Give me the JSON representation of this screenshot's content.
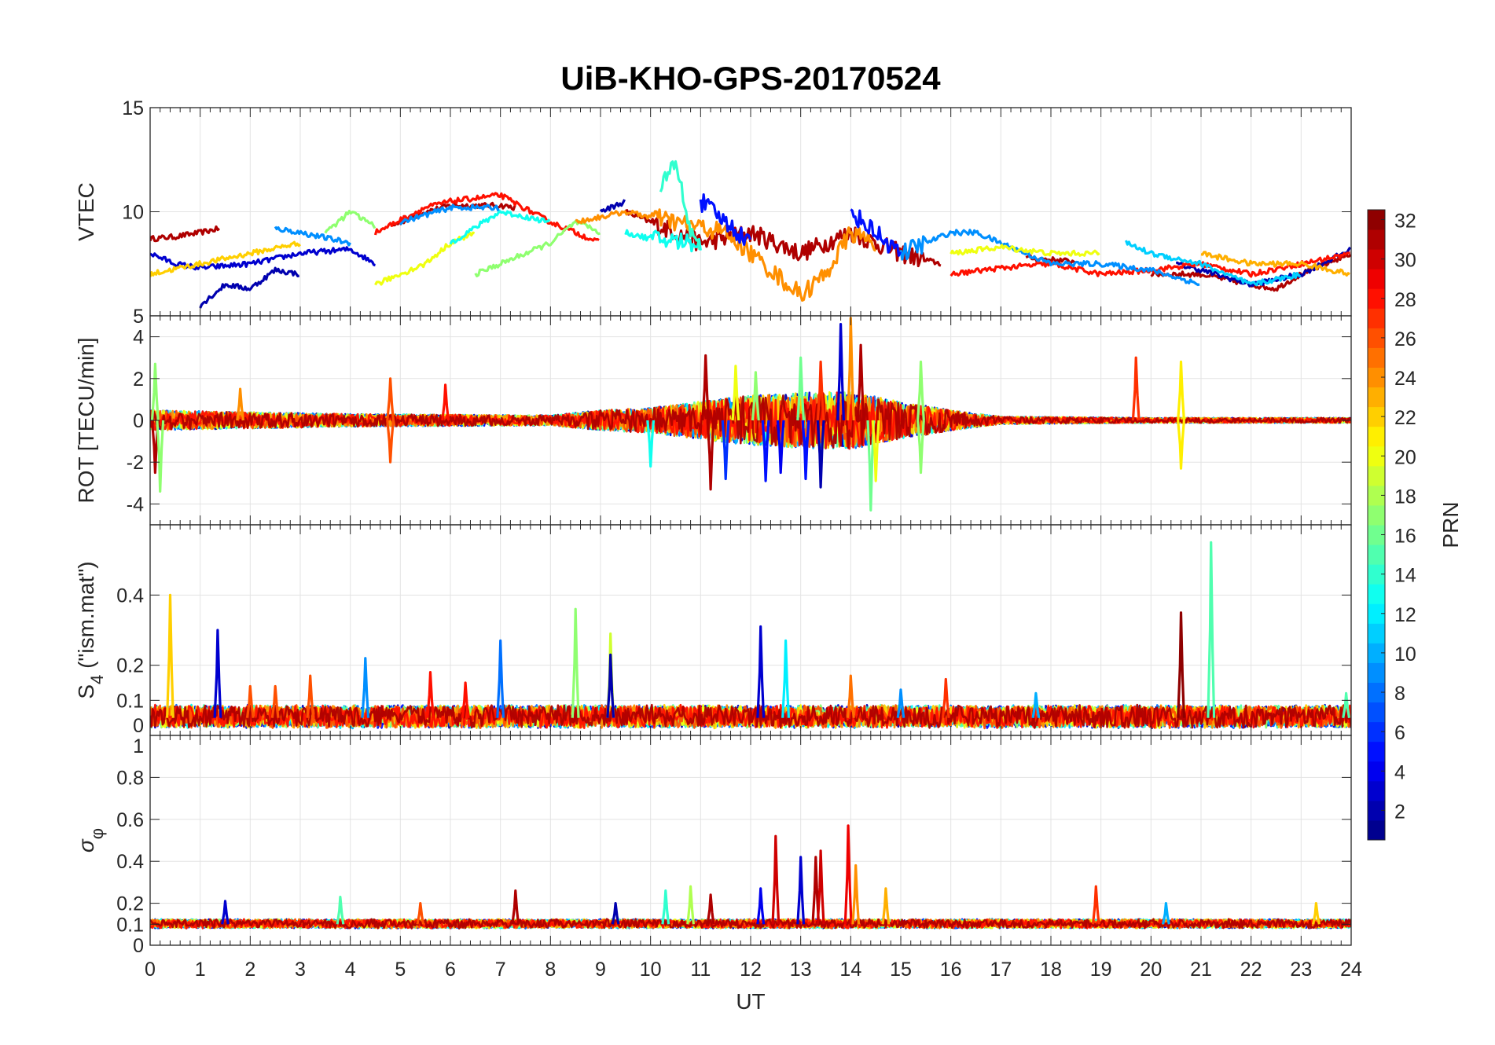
{
  "chart_data": {
    "type": "line",
    "title": "UiB-KHO-GPS-20170524",
    "xlabel": "UT",
    "xlim": [
      0,
      24
    ],
    "xticks": [
      0,
      1,
      2,
      3,
      4,
      5,
      6,
      7,
      8,
      9,
      10,
      11,
      12,
      13,
      14,
      15,
      16,
      17,
      18,
      19,
      20,
      21,
      22,
      23,
      24
    ],
    "grid": true,
    "colorbar": {
      "label": "PRN",
      "range": [
        1,
        32
      ],
      "ticks": [
        2,
        4,
        6,
        8,
        10,
        12,
        14,
        16,
        18,
        20,
        22,
        24,
        26,
        28,
        30,
        32
      ],
      "colormap": "jet",
      "levels": 32,
      "placement": "right"
    },
    "panels": [
      {
        "id": "vtec",
        "ylabel": "VTEC",
        "ylim": [
          5,
          15
        ],
        "yticks": [
          5,
          10,
          15
        ],
        "series": [
          {
            "prn": 31,
            "x": [
              0,
              0.5,
              1,
              1.4
            ],
            "y": [
              8.7,
              8.8,
              9.0,
              9.2
            ]
          },
          {
            "prn": 31,
            "x": [
              4.8,
              5.5,
              6,
              7,
              7.3
            ],
            "y": [
              9.3,
              10,
              10.3,
              10.3,
              10.2
            ]
          },
          {
            "prn": 31,
            "x": [
              9.5,
              10,
              11,
              12,
              13,
              14,
              15,
              15.8
            ],
            "y": [
              10,
              9.5,
              8.5,
              9,
              8,
              9,
              8,
              7.5
            ]
          },
          {
            "prn": 31,
            "x": [
              17.5,
              18.5
            ],
            "y": [
              7.8,
              7.6
            ]
          },
          {
            "prn": 31,
            "x": [
              20,
              21,
              22,
              22.5,
              23,
              24
            ],
            "y": [
              7,
              7,
              6.5,
              6.3,
              7,
              8
            ]
          },
          {
            "prn": 3,
            "x": [
              0,
              0.5,
              1,
              2,
              3,
              4,
              4.5
            ],
            "y": [
              8,
              7.5,
              7.3,
              7.5,
              8,
              8.2,
              7.5
            ]
          },
          {
            "prn": 2,
            "x": [
              1,
              1.5,
              2,
              2.5,
              3
            ],
            "y": [
              5.5,
              6.5,
              6.3,
              7.2,
              7
            ]
          },
          {
            "prn": 2,
            "x": [
              9,
              9.5
            ],
            "y": [
              10,
              10.5
            ]
          },
          {
            "prn": 2,
            "x": [
              20.5,
              21,
              22,
              23,
              24
            ],
            "y": [
              7.5,
              7.2,
              6.5,
              7,
              8.2
            ]
          },
          {
            "prn": 22,
            "x": [
              0,
              1,
              2,
              3
            ],
            "y": [
              7,
              7.5,
              8,
              8.5
            ]
          },
          {
            "prn": 28,
            "x": [
              4.5,
              5.5,
              6,
              7,
              8,
              9
            ],
            "y": [
              9,
              10.2,
              10.5,
              10.8,
              9.5,
              8.5
            ]
          },
          {
            "prn": 28,
            "x": [
              16,
              17,
              18,
              19,
              20,
              21,
              22,
              24
            ],
            "y": [
              7,
              7.3,
              7.5,
              7,
              7.2,
              7.5,
              7,
              8
            ]
          },
          {
            "prn": 9,
            "x": [
              2.5,
              3,
              4
            ],
            "y": [
              9.2,
              9,
              8.5
            ]
          },
          {
            "prn": 9,
            "x": [
              5,
              6,
              7
            ],
            "y": [
              9.5,
              10.2,
              10.2
            ]
          },
          {
            "prn": 9,
            "x": [
              15,
              16,
              16.5,
              17,
              18,
              19,
              20,
              21
            ],
            "y": [
              8,
              9,
              9,
              8.5,
              7.5,
              7.5,
              7.2,
              6.5
            ]
          },
          {
            "prn": 17,
            "x": [
              3.5,
              4,
              4.5
            ],
            "y": [
              9,
              10,
              9.3
            ]
          },
          {
            "prn": 17,
            "x": [
              6.5,
              7,
              8,
              8.5,
              9
            ],
            "y": [
              7,
              7.5,
              8.5,
              9.5,
              9
            ]
          },
          {
            "prn": 20,
            "x": [
              4.5,
              5,
              5.5,
              6,
              6.5
            ],
            "y": [
              6.5,
              7,
              7.5,
              8.5,
              9
            ]
          },
          {
            "prn": 20,
            "x": [
              16,
              17,
              18,
              19
            ],
            "y": [
              8,
              8.3,
              8,
              8
            ]
          },
          {
            "prn": 13,
            "x": [
              6,
              7,
              8
            ],
            "y": [
              8.5,
              10,
              9.5
            ]
          },
          {
            "prn": 13,
            "x": [
              9.5,
              10,
              11
            ],
            "y": [
              9,
              8.7,
              8.5
            ]
          },
          {
            "prn": 24,
            "x": [
              8.5,
              9.5,
              10.5,
              11.5,
              12,
              12.5,
              13,
              13.5,
              14,
              14.5
            ],
            "y": [
              9.5,
              10,
              9.5,
              9,
              8,
              7,
              6,
              7,
              9,
              8.5
            ]
          },
          {
            "prn": 5,
            "x": [
              11,
              11.5,
              12
            ],
            "y": [
              10.5,
              9.5,
              8.5
            ]
          },
          {
            "prn": 5,
            "x": [
              14,
              14.5,
              15
            ],
            "y": [
              10,
              9,
              8
            ]
          },
          {
            "prn": 14,
            "x": [
              10.2,
              10.5,
              10.8,
              11
            ],
            "y": [
              11,
              12.5,
              9,
              8.5
            ]
          },
          {
            "prn": 23,
            "x": [
              21,
              22,
              23,
              24
            ],
            "y": [
              8,
              7.5,
              7.5,
              7
            ]
          },
          {
            "prn": 11,
            "x": [
              19.5,
              20,
              21,
              22,
              23
            ],
            "y": [
              8.5,
              8,
              7.5,
              6.5,
              7
            ]
          }
        ]
      },
      {
        "id": "rot",
        "ylabel": "ROT [TECU/min]",
        "ylim": [
          -5,
          5
        ],
        "yticks": [
          -4,
          -2,
          0,
          2,
          4
        ],
        "baseline": 0,
        "activity": {
          "x": [
            0,
            4,
            8,
            9,
            10,
            11,
            12,
            13,
            14,
            15,
            16,
            17,
            20,
            24
          ],
          "amplitude": [
            0.8,
            0.5,
            0.4,
            0.8,
            1,
            1.5,
            2,
            2.2,
            2.3,
            1.5,
            0.8,
            0.3,
            0.2,
            0.2
          ]
        },
        "peaks": [
          {
            "x": 0.1,
            "y": 2.7,
            "prn": 17
          },
          {
            "x": 0.1,
            "y": -2.5,
            "prn": 31
          },
          {
            "x": 0.2,
            "y": -3.4,
            "prn": 17
          },
          {
            "x": 1.8,
            "y": 1.5,
            "prn": 24
          },
          {
            "x": 4.8,
            "y": 2,
            "prn": 26
          },
          {
            "x": 4.8,
            "y": -2,
            "prn": 26
          },
          {
            "x": 5.9,
            "y": 1.7,
            "prn": 28
          },
          {
            "x": 10,
            "y": -2.2,
            "prn": 13
          },
          {
            "x": 11.1,
            "y": 3.1,
            "prn": 31
          },
          {
            "x": 11.2,
            "y": -3.3,
            "prn": 31
          },
          {
            "x": 11.5,
            "y": -2.8,
            "prn": 6
          },
          {
            "x": 11.7,
            "y": 2.6,
            "prn": 20
          },
          {
            "x": 12.1,
            "y": 2.3,
            "prn": 17
          },
          {
            "x": 12.3,
            "y": -2.9,
            "prn": 5
          },
          {
            "x": 12.6,
            "y": -2.5,
            "prn": 4
          },
          {
            "x": 13.0,
            "y": 3.0,
            "prn": 16
          },
          {
            "x": 13.1,
            "y": -2.8,
            "prn": 5
          },
          {
            "x": 13.4,
            "y": 2.8,
            "prn": 27
          },
          {
            "x": 13.4,
            "y": -3.2,
            "prn": 2
          },
          {
            "x": 13.8,
            "y": 4.6,
            "prn": 3
          },
          {
            "x": 14.0,
            "y": 4.9,
            "prn": 24
          },
          {
            "x": 14.2,
            "y": 3.6,
            "prn": 31
          },
          {
            "x": 14.4,
            "y": -4.3,
            "prn": 16
          },
          {
            "x": 14.5,
            "y": -2.9,
            "prn": 20
          },
          {
            "x": 15.4,
            "y": 2.8,
            "prn": 17
          },
          {
            "x": 15.4,
            "y": -2.5,
            "prn": 17
          },
          {
            "x": 19.7,
            "y": 3,
            "prn": 27
          },
          {
            "x": 20.6,
            "y": 2.8,
            "prn": 21
          },
          {
            "x": 20.6,
            "y": -2.3,
            "prn": 21
          }
        ]
      },
      {
        "id": "s4",
        "ylabel": "S4 (\"ism.mat\")",
        "ylabel_main": "S",
        "ylabel_sub": "4",
        "ylabel_rest": " (\"ism.mat\")",
        "ylim": [
          0,
          0.6
        ],
        "yticks": [
          0,
          0.1,
          0.2,
          0.4
        ],
        "baseline": 0.05,
        "activity": {
          "x": [
            0,
            24
          ],
          "amplitude": [
            0.03,
            0.03
          ]
        },
        "peaks": [
          {
            "x": 0.4,
            "y": 0.4,
            "prn": 22
          },
          {
            "x": 1.35,
            "y": 0.3,
            "prn": 3
          },
          {
            "x": 2.0,
            "y": 0.14,
            "prn": 26
          },
          {
            "x": 2.5,
            "y": 0.14,
            "prn": 26
          },
          {
            "x": 3.2,
            "y": 0.17,
            "prn": 26
          },
          {
            "x": 4.3,
            "y": 0.22,
            "prn": 9
          },
          {
            "x": 5.6,
            "y": 0.18,
            "prn": 28
          },
          {
            "x": 6.3,
            "y": 0.15,
            "prn": 28
          },
          {
            "x": 7.0,
            "y": 0.27,
            "prn": 8
          },
          {
            "x": 8.5,
            "y": 0.36,
            "prn": 17
          },
          {
            "x": 9.2,
            "y": 0.29,
            "prn": 19
          },
          {
            "x": 9.2,
            "y": 0.23,
            "prn": 2
          },
          {
            "x": 12.2,
            "y": 0.31,
            "prn": 3
          },
          {
            "x": 12.7,
            "y": 0.27,
            "prn": 12
          },
          {
            "x": 14.0,
            "y": 0.17,
            "prn": 25
          },
          {
            "x": 15.0,
            "y": 0.13,
            "prn": 9
          },
          {
            "x": 15.9,
            "y": 0.16,
            "prn": 27
          },
          {
            "x": 17.7,
            "y": 0.12,
            "prn": 10
          },
          {
            "x": 20.6,
            "y": 0.35,
            "prn": 32
          },
          {
            "x": 21.2,
            "y": 0.55,
            "prn": 15
          },
          {
            "x": 23.9,
            "y": 0.12,
            "prn": 15
          }
        ]
      },
      {
        "id": "sigma",
        "ylabel": "σφ",
        "ylabel_main": "σ",
        "ylabel_sub": "φ",
        "ylim": [
          0,
          1
        ],
        "yticks": [
          0,
          0.1,
          0.2,
          0.4,
          0.6,
          0.8,
          1
        ],
        "baseline": 0.1,
        "activity": {
          "x": [
            0,
            24
          ],
          "amplitude": [
            0.02,
            0.02
          ]
        },
        "peaks": [
          {
            "x": 1.5,
            "y": 0.21,
            "prn": 3
          },
          {
            "x": 3.8,
            "y": 0.23,
            "prn": 15
          },
          {
            "x": 5.4,
            "y": 0.2,
            "prn": 26
          },
          {
            "x": 7.3,
            "y": 0.26,
            "prn": 31
          },
          {
            "x": 9.3,
            "y": 0.2,
            "prn": 2
          },
          {
            "x": 10.3,
            "y": 0.26,
            "prn": 14
          },
          {
            "x": 10.8,
            "y": 0.28,
            "prn": 18
          },
          {
            "x": 11.2,
            "y": 0.24,
            "prn": 31
          },
          {
            "x": 12.2,
            "y": 0.27,
            "prn": 4
          },
          {
            "x": 12.5,
            "y": 0.52,
            "prn": 30
          },
          {
            "x": 13.0,
            "y": 0.42,
            "prn": 3
          },
          {
            "x": 13.3,
            "y": 0.42,
            "prn": 31
          },
          {
            "x": 13.4,
            "y": 0.45,
            "prn": 30
          },
          {
            "x": 13.95,
            "y": 0.57,
            "prn": 29
          },
          {
            "x": 14.1,
            "y": 0.38,
            "prn": 24
          },
          {
            "x": 14.7,
            "y": 0.27,
            "prn": 23
          },
          {
            "x": 18.9,
            "y": 0.28,
            "prn": 27
          },
          {
            "x": 20.3,
            "y": 0.2,
            "prn": 10
          },
          {
            "x": 23.3,
            "y": 0.2,
            "prn": 22
          }
        ]
      }
    ]
  }
}
